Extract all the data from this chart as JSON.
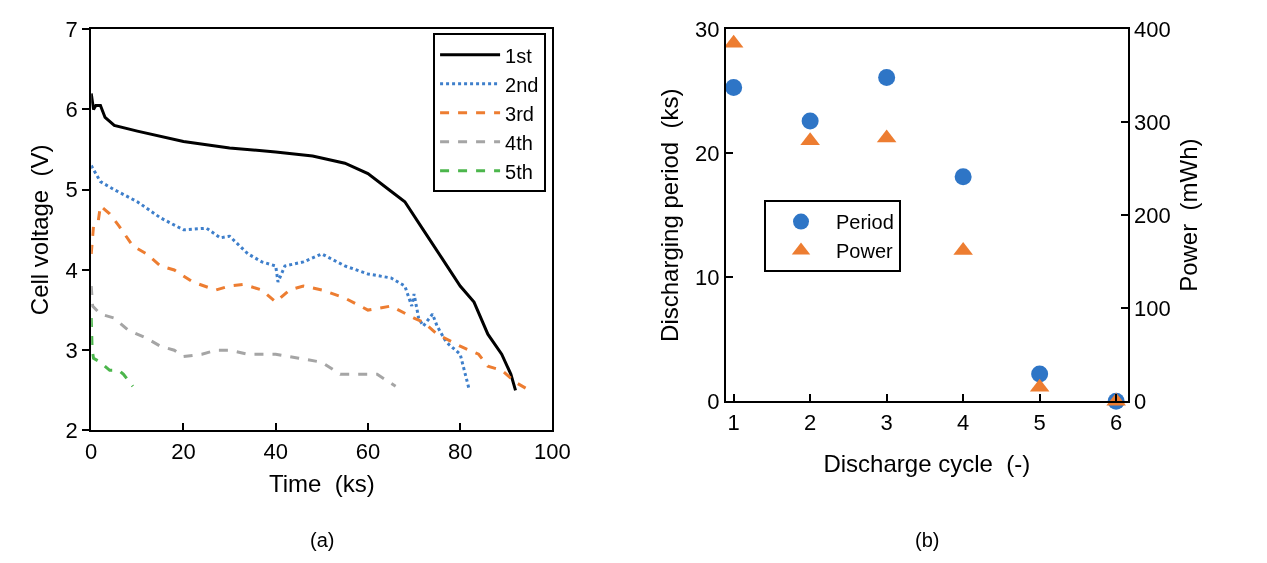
{
  "chart_data": [
    {
      "type": "line",
      "xlabel": "Time  (ks)",
      "ylabel": "Cell voltage  (V)",
      "annotations": [
        "(a)"
      ],
      "xlim": [
        0,
        100
      ],
      "xticks": [
        0,
        20,
        40,
        60,
        80,
        100
      ],
      "ylim": [
        2,
        7
      ],
      "yticks": [
        2,
        3,
        4,
        5,
        6,
        7
      ],
      "grid": false,
      "legend": "top right",
      "marker": "none",
      "series": [
        {
          "name": "1st",
          "color": "#000000",
          "line_style": "solid",
          "x": [
            0,
            0.5,
            1,
            2,
            3,
            5,
            10,
            20,
            30,
            40,
            48,
            55,
            60,
            65,
            68,
            72,
            76,
            80,
            83,
            86,
            89,
            91,
            92
          ],
          "values": [
            6.2,
            6.0,
            6.05,
            6.05,
            5.9,
            5.8,
            5.73,
            5.6,
            5.52,
            5.47,
            5.42,
            5.33,
            5.2,
            4.98,
            4.85,
            4.5,
            4.15,
            3.8,
            3.6,
            3.2,
            2.95,
            2.7,
            2.5
          ]
        },
        {
          "name": "2nd",
          "color": "#3e7fcb",
          "line_style": "dotted",
          "x": [
            0,
            2,
            5,
            10,
            15,
            20,
            25,
            28,
            30,
            34,
            37,
            40,
            40.5,
            42,
            46,
            50,
            55,
            60,
            65,
            68,
            69.5,
            70,
            71,
            72,
            74,
            75,
            77,
            80,
            82
          ],
          "values": [
            5.3,
            5.1,
            5.0,
            4.85,
            4.65,
            4.5,
            4.52,
            4.4,
            4.42,
            4.2,
            4.1,
            4.05,
            3.85,
            4.05,
            4.1,
            4.2,
            4.05,
            3.95,
            3.9,
            3.8,
            3.55,
            3.7,
            3.4,
            3.3,
            3.45,
            3.3,
            3.1,
            2.95,
            2.5
          ]
        },
        {
          "name": "3rd",
          "color": "#ed7d31",
          "line_style": "dashed",
          "x": [
            0,
            0.5,
            1.5,
            2,
            3,
            4,
            6,
            9,
            12,
            15,
            18,
            22,
            27,
            30,
            33,
            37,
            40,
            43,
            46,
            50,
            55,
            60,
            65,
            70,
            72,
            75,
            80,
            84,
            86,
            89,
            92,
            95
          ],
          "values": [
            4.2,
            4.55,
            4.6,
            4.8,
            4.75,
            4.7,
            4.55,
            4.3,
            4.2,
            4.05,
            4.0,
            3.85,
            3.75,
            3.8,
            3.82,
            3.75,
            3.6,
            3.75,
            3.8,
            3.75,
            3.65,
            3.5,
            3.55,
            3.4,
            3.35,
            3.2,
            3.05,
            2.95,
            2.8,
            2.75,
            2.6,
            2.5
          ]
        },
        {
          "name": "4th",
          "color": "#a5a5a5",
          "line_style": "dashed",
          "x": [
            0,
            0.3,
            2,
            5,
            8,
            12,
            15,
            18,
            20,
            24,
            27,
            30,
            34,
            40,
            45,
            50,
            54,
            58,
            62,
            66
          ],
          "values": [
            3.8,
            3.55,
            3.45,
            3.4,
            3.25,
            3.15,
            3.05,
            3.0,
            2.92,
            2.95,
            3.0,
            3.0,
            2.95,
            2.95,
            2.9,
            2.85,
            2.7,
            2.7,
            2.7,
            2.55
          ]
        },
        {
          "name": "5th",
          "color": "#4cb64c",
          "line_style": "dashed",
          "x": [
            0,
            0.2,
            0.5,
            2,
            4,
            6,
            7,
            9
          ],
          "values": [
            3.4,
            3.0,
            2.9,
            2.85,
            2.75,
            2.75,
            2.7,
            2.55
          ]
        }
      ]
    },
    {
      "type": "scatter",
      "xlabel": "Discharge cycle  (-)",
      "ylabel": "Discharging period  (ks)",
      "y2label": "Power  (mWh)",
      "annotations": [
        "(b)"
      ],
      "categories": [
        "1",
        "2",
        "3",
        "4",
        "5",
        "6"
      ],
      "ylim": [
        0,
        30
      ],
      "yticks": [
        0,
        10,
        20,
        30
      ],
      "y2lim": [
        0,
        400
      ],
      "y2ticks": [
        0,
        100,
        200,
        300,
        400
      ],
      "grid": false,
      "legend": "left",
      "series": [
        {
          "name": "Period",
          "color": "#2e75c6",
          "marker": "circle",
          "values": [
            25.3,
            22.6,
            26.1,
            18.1,
            2.2,
            0
          ]
        },
        {
          "name": "Power",
          "color": "#ed7d31",
          "marker": "triangle",
          "axis": "y2",
          "values": [
            385,
            280,
            283,
            162,
            15,
            0
          ]
        }
      ]
    }
  ]
}
